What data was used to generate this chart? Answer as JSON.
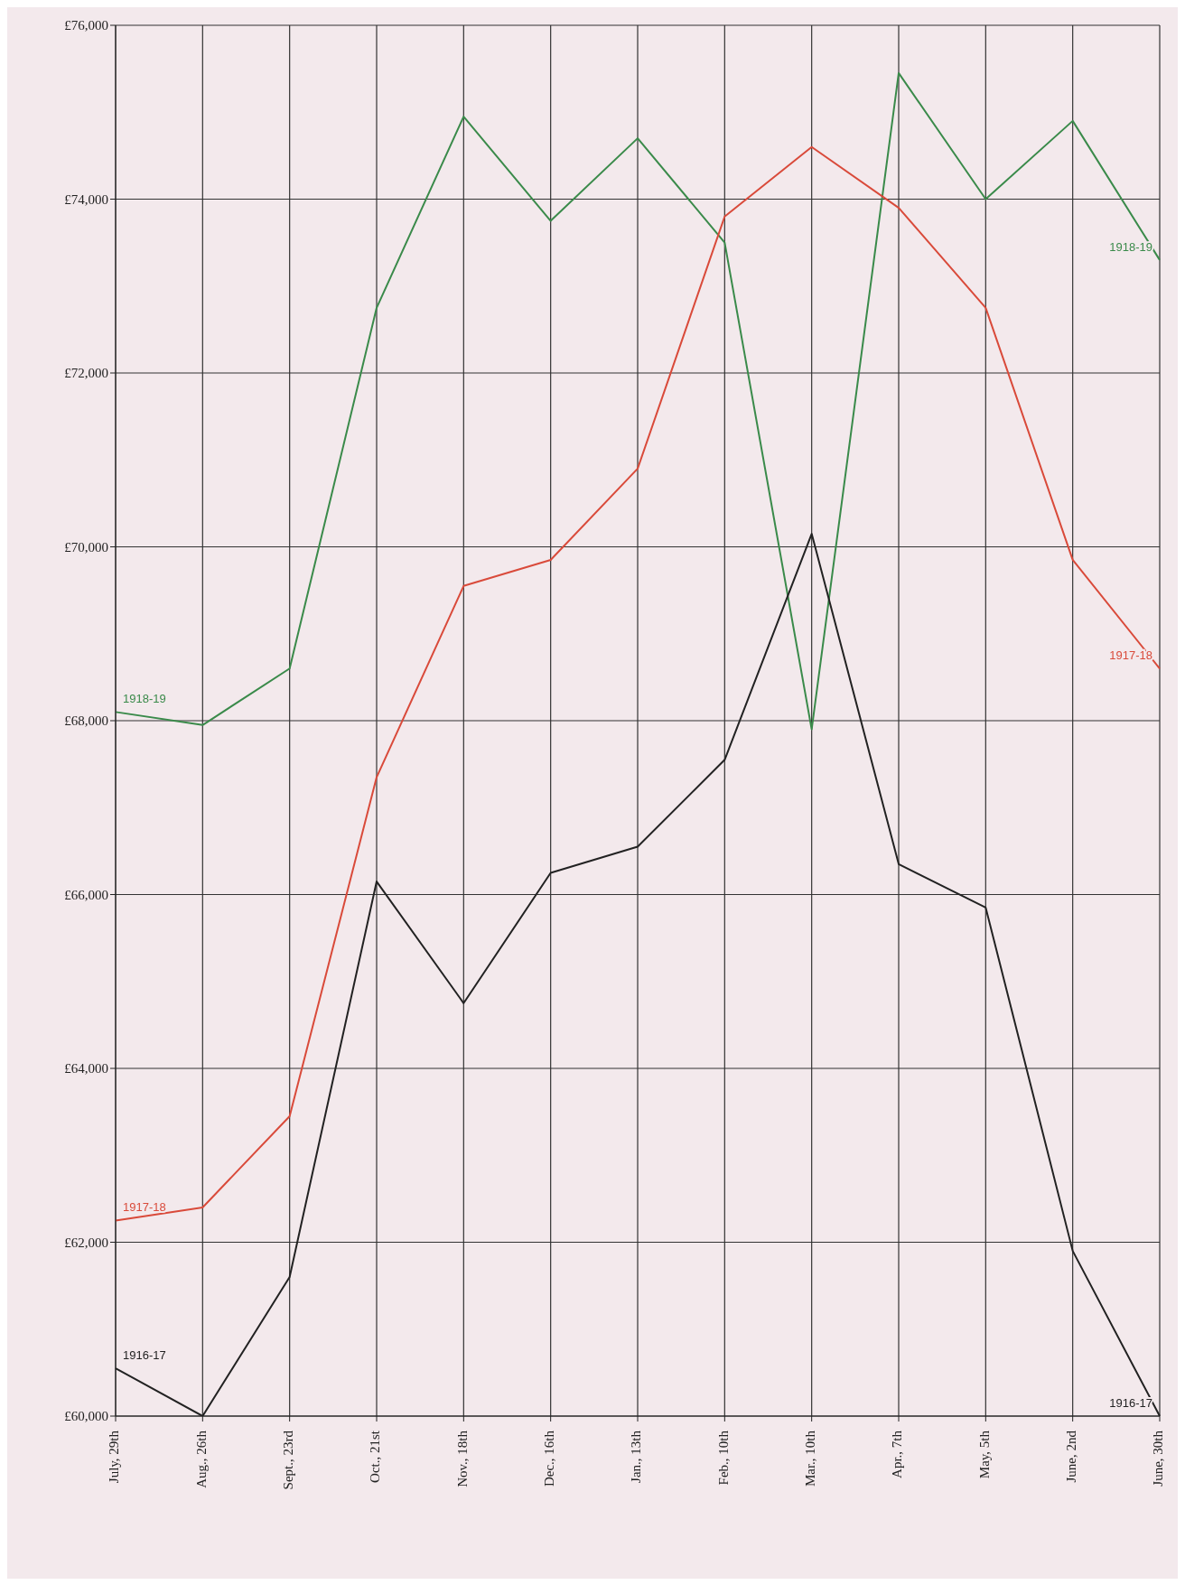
{
  "chart_data": {
    "type": "line",
    "categories": [
      "July, 29th",
      "Aug., 26th",
      "Sept., 23rd",
      "Oct., 21st",
      "Nov., 18th",
      "Dec., 16th",
      "Jan., 13th",
      "Feb., 10th",
      "Mar., 10th",
      "Apr., 7th",
      "May, 5th",
      "June, 2nd",
      "June, 30th"
    ],
    "series": [
      {
        "name": "1918-19",
        "color": "#3a8a4a",
        "values": [
          68100,
          67950,
          68600,
          72750,
          74950,
          73750,
          74700,
          73500,
          67900,
          75450,
          74000,
          74900,
          73300
        ]
      },
      {
        "name": "1917-18",
        "color": "#d94a3a",
        "values": [
          62250,
          62400,
          63450,
          67350,
          69550,
          69850,
          70900,
          73800,
          74600,
          73900,
          72750,
          69850,
          68600
        ]
      },
      {
        "name": "1916-17",
        "color": "#222222",
        "values": [
          60550,
          60000,
          61600,
          66150,
          64750,
          66250,
          66550,
          67550,
          70150,
          66350,
          65850,
          61900,
          60000
        ]
      }
    ],
    "ylim": [
      60000,
      76000
    ],
    "yticks": [
      {
        "value": 60000,
        "label": "£60,000"
      },
      {
        "value": 62000,
        "label": "£62,000"
      },
      {
        "value": 64000,
        "label": "£64,000"
      },
      {
        "value": 66000,
        "label": "£66,000"
      },
      {
        "value": 68000,
        "label": "£68,000"
      },
      {
        "value": 70000,
        "label": "£70,000"
      },
      {
        "value": 72000,
        "label": "£72,000"
      },
      {
        "value": 74000,
        "label": "£74,000"
      },
      {
        "value": 76000,
        "label": "£76,000"
      }
    ],
    "grid": true,
    "legend": false,
    "marker": "none",
    "line_style": "solid"
  }
}
